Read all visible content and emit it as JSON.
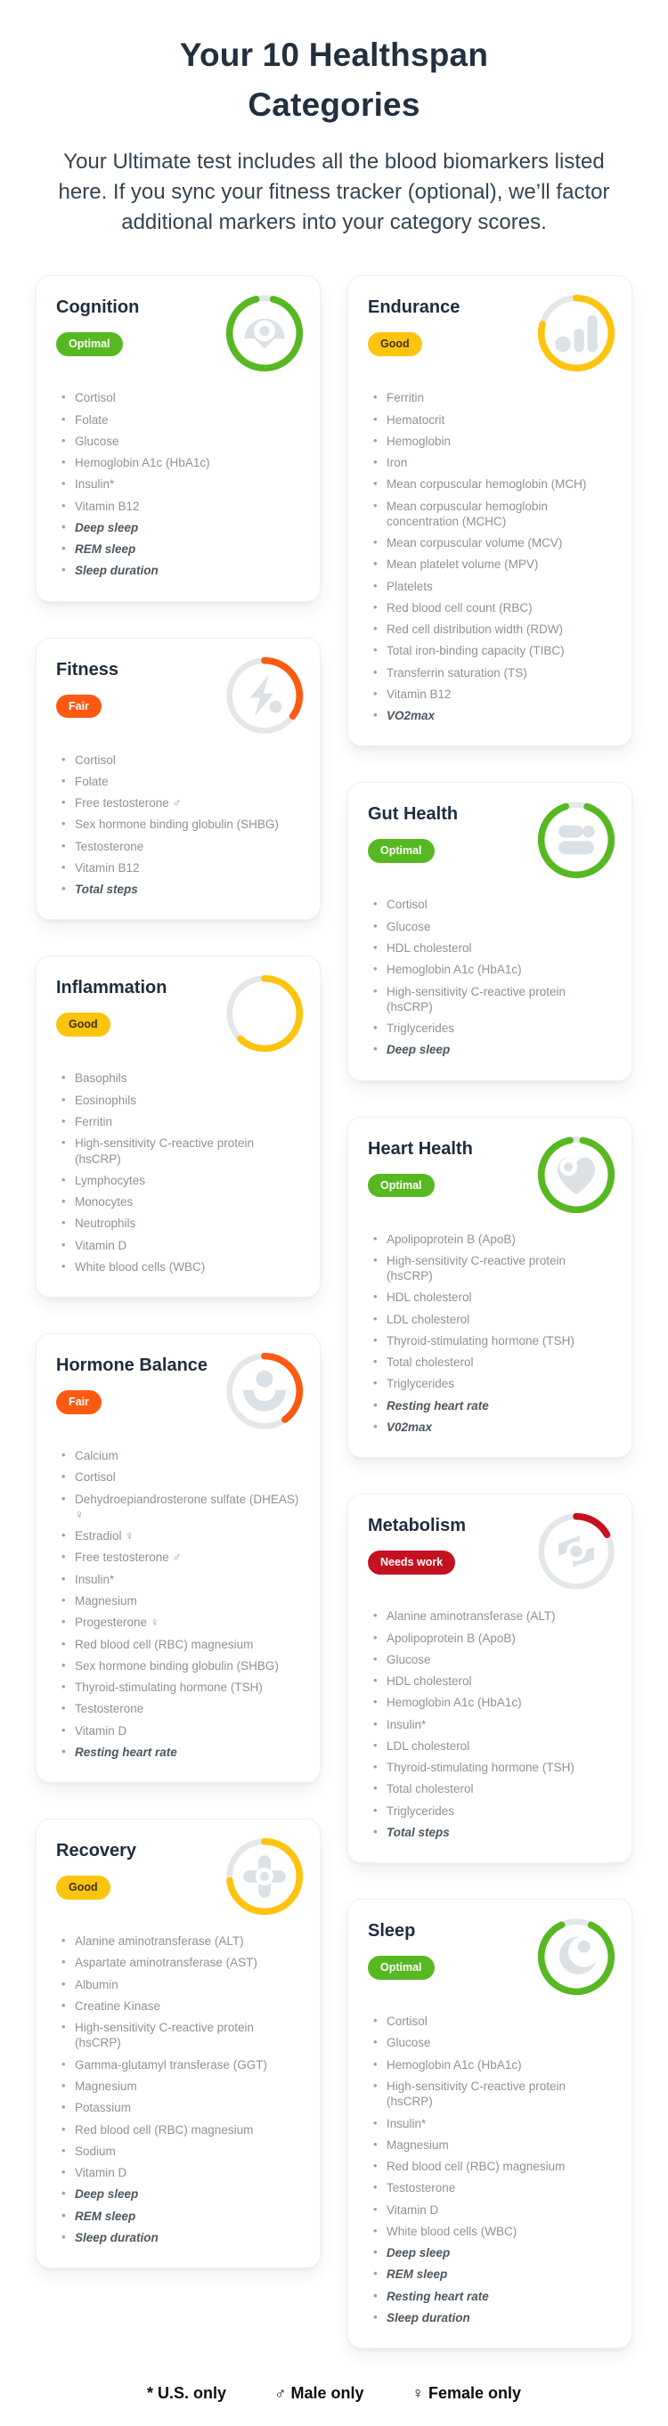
{
  "page": {
    "title": "Your 10 Healthspan Categories",
    "subtitle": "Your Ultimate test includes all the blood biomarkers listed here. If you sync your fitness tracker (optional), we’ll factor additional markers into your category scores."
  },
  "colors": {
    "status_colors": {
      "Optimal": "#57b822",
      "Good": "#fcc40e",
      "Fair": "#fc5a12",
      "Needs work": "#c41220"
    },
    "badge_text_colors": {
      "Optimal": "#ffffff",
      "Good": "#3e3200",
      "Fair": "#ffffff",
      "Needs work": "#ffffff"
    },
    "ring_track": "#e3e7ea",
    "icon_gray": "#dce1e6"
  },
  "legend": {
    "us_only": "* U.S. only",
    "male_only": "♂ Male only",
    "female_only": "♀ Female only"
  },
  "columns": {
    "left": [
      {
        "name": "Cognition",
        "status": "Optimal",
        "ring_percent": 92,
        "icon": "mind-icon",
        "markers": [
          {
            "label": "Cortisol"
          },
          {
            "label": "Folate"
          },
          {
            "label": "Glucose"
          },
          {
            "label": "Hemoglobin A1c (HbA1c)"
          },
          {
            "label": "Insulin*"
          },
          {
            "label": "Vitamin B12"
          },
          {
            "label": "Deep sleep",
            "tracker": true
          },
          {
            "label": "REM sleep",
            "tracker": true
          },
          {
            "label": "Sleep duration",
            "tracker": true
          }
        ]
      },
      {
        "name": "Fitness",
        "status": "Fair",
        "ring_percent": 35,
        "icon": "bolt-icon",
        "markers": [
          {
            "label": "Cortisol"
          },
          {
            "label": "Folate"
          },
          {
            "label": "Free testosterone ♂"
          },
          {
            "label": "Sex hormone binding globulin (SHBG)"
          },
          {
            "label": "Testosterone"
          },
          {
            "label": "Vitamin B12"
          },
          {
            "label": "Total steps",
            "tracker": true
          }
        ]
      },
      {
        "name": "Inflammation",
        "status": "Good",
        "ring_percent": 62,
        "icon": "none",
        "markers": [
          {
            "label": "Basophils"
          },
          {
            "label": "Eosinophils"
          },
          {
            "label": "Ferritin"
          },
          {
            "label": "High-sensitivity C-reactive protein (hsCRP)"
          },
          {
            "label": "Lymphocytes"
          },
          {
            "label": "Monocytes"
          },
          {
            "label": "Neutrophils"
          },
          {
            "label": "Vitamin D"
          },
          {
            "label": "White blood cells (WBC)"
          }
        ]
      },
      {
        "name": "Hormone Balance",
        "status": "Fair",
        "ring_percent": 40,
        "icon": "person-icon",
        "markers": [
          {
            "label": "Calcium"
          },
          {
            "label": "Cortisol"
          },
          {
            "label": "Dehydroepiandrosterone sulfate (DHEAS) ♀"
          },
          {
            "label": "Estradiol ♀"
          },
          {
            "label": "Free testosterone ♂"
          },
          {
            "label": "Insulin*"
          },
          {
            "label": "Magnesium"
          },
          {
            "label": "Progesterone ♀"
          },
          {
            "label": "Red blood cell (RBC) magnesium"
          },
          {
            "label": "Sex hormone binding globulin (SHBG)"
          },
          {
            "label": "Thyroid-stimulating hormone (TSH)"
          },
          {
            "label": "Testosterone"
          },
          {
            "label": "Vitamin D"
          },
          {
            "label": "Resting heart rate",
            "tracker": true
          }
        ]
      },
      {
        "name": "Recovery",
        "status": "Good",
        "ring_percent": 73,
        "icon": "cross-icon",
        "markers": [
          {
            "label": "Alanine aminotransferase (ALT)"
          },
          {
            "label": "Aspartate aminotransferase (AST)"
          },
          {
            "label": "Albumin"
          },
          {
            "label": "Creatine Kinase"
          },
          {
            "label": "High-sensitivity C-reactive protein (hsCRP)"
          },
          {
            "label": "Gamma-glutamyl transferase (GGT)"
          },
          {
            "label": "Magnesium"
          },
          {
            "label": "Potassium"
          },
          {
            "label": "Red blood cell (RBC) magnesium"
          },
          {
            "label": "Sodium"
          },
          {
            "label": "Vitamin D"
          },
          {
            "label": "Deep sleep",
            "tracker": true
          },
          {
            "label": "REM sleep",
            "tracker": true
          },
          {
            "label": "Sleep duration",
            "tracker": true
          }
        ]
      }
    ],
    "right": [
      {
        "name": "Endurance",
        "status": "Good",
        "ring_percent": 79,
        "icon": "chart-bars-icon",
        "markers": [
          {
            "label": "Ferritin"
          },
          {
            "label": "Hematocrit"
          },
          {
            "label": "Hemoglobin"
          },
          {
            "label": "Iron"
          },
          {
            "label": "Mean corpuscular hemoglobin (MCH)"
          },
          {
            "label": "Mean corpuscular hemoglobin concentration (MCHC)"
          },
          {
            "label": "Mean corpuscular volume (MCV)"
          },
          {
            "label": "Mean platelet volume (MPV)"
          },
          {
            "label": "Platelets"
          },
          {
            "label": "Red blood cell count (RBC)"
          },
          {
            "label": "Red cell distribution width (RDW)"
          },
          {
            "label": "Total iron-binding capacity (TIBC)"
          },
          {
            "label": "Transferrin saturation (TS)"
          },
          {
            "label": "Vitamin B12"
          },
          {
            "label": "VO2max",
            "tracker": true
          }
        ]
      },
      {
        "name": "Gut Health",
        "status": "Optimal",
        "ring_percent": 90,
        "icon": "gut-icon",
        "markers": [
          {
            "label": "Cortisol"
          },
          {
            "label": "Glucose"
          },
          {
            "label": "HDL cholesterol"
          },
          {
            "label": "Hemoglobin A1c (HbA1c)"
          },
          {
            "label": "High-sensitivity C-reactive protein (hsCRP)"
          },
          {
            "label": "Triglycerides"
          },
          {
            "label": "Deep sleep",
            "tracker": true
          }
        ]
      },
      {
        "name": "Heart Health",
        "status": "Optimal",
        "ring_percent": 94,
        "icon": "heart-icon",
        "markers": [
          {
            "label": "Apolipoprotein B (ApoB)"
          },
          {
            "label": "High-sensitivity C-reactive protein (hsCRP)"
          },
          {
            "label": "HDL cholesterol"
          },
          {
            "label": "LDL cholesterol"
          },
          {
            "label": "Thyroid-stimulating hormone (TSH)"
          },
          {
            "label": "Total cholesterol"
          },
          {
            "label": "Triglycerides"
          },
          {
            "label": "Resting heart rate",
            "tracker": true
          },
          {
            "label": "V02max",
            "tracker": true
          }
        ]
      },
      {
        "name": "Metabolism",
        "status": "Needs work",
        "ring_percent": 17,
        "icon": "metabolism-icon",
        "markers": [
          {
            "label": "Alanine aminotransferase (ALT)"
          },
          {
            "label": "Apolipoprotein B (ApoB)"
          },
          {
            "label": "Glucose"
          },
          {
            "label": "HDL cholesterol"
          },
          {
            "label": "Hemoglobin A1c (HbA1c)"
          },
          {
            "label": "Insulin*"
          },
          {
            "label": "LDL cholesterol"
          },
          {
            "label": "Thyroid-stimulating hormone (TSH)"
          },
          {
            "label": "Total cholesterol"
          },
          {
            "label": "Triglycerides"
          },
          {
            "label": "Total steps",
            "tracker": true
          }
        ]
      },
      {
        "name": "Sleep",
        "status": "Optimal",
        "ring_percent": 86,
        "icon": "moon-icon",
        "markers": [
          {
            "label": "Cortisol"
          },
          {
            "label": "Glucose"
          },
          {
            "label": "Hemoglobin A1c (HbA1c)"
          },
          {
            "label": "High-sensitivity C-reactive protein (hsCRP)"
          },
          {
            "label": "Insulin*"
          },
          {
            "label": "Magnesium"
          },
          {
            "label": "Red blood cell (RBC) magnesium"
          },
          {
            "label": "Testosterone"
          },
          {
            "label": "Vitamin D"
          },
          {
            "label": "White blood cells (WBC)"
          },
          {
            "label": "Deep sleep",
            "tracker": true
          },
          {
            "label": "REM sleep",
            "tracker": true
          },
          {
            "label": "Resting heart rate",
            "tracker": true
          },
          {
            "label": "Sleep duration",
            "tracker": true
          }
        ]
      }
    ]
  }
}
